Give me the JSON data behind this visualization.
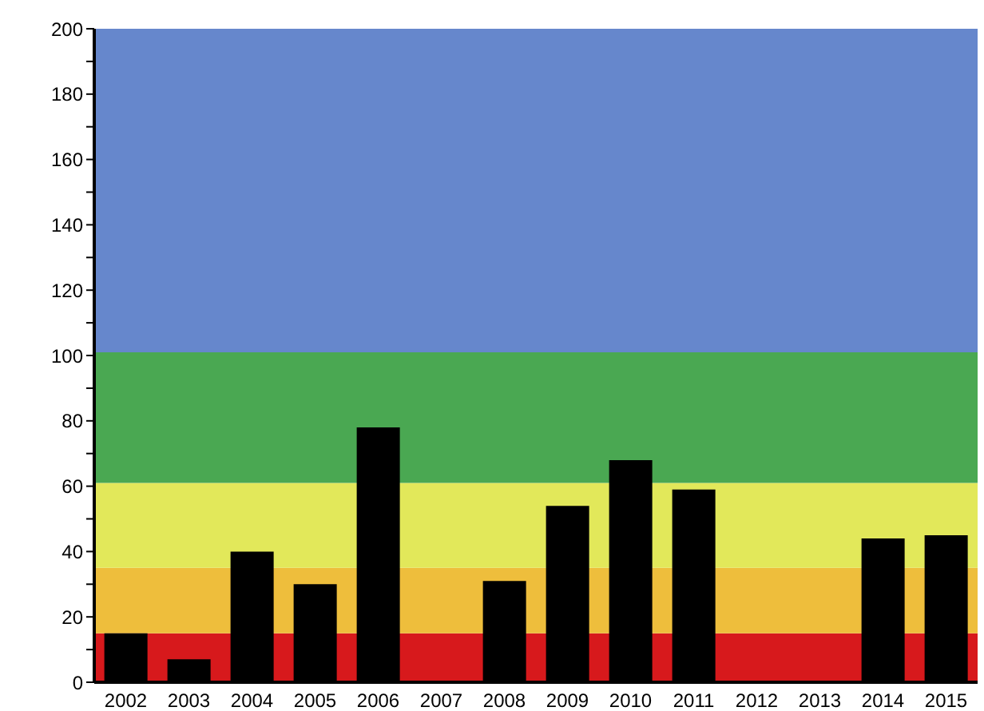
{
  "chart_data": {
    "type": "bar",
    "categories": [
      "2002",
      "2003",
      "2004",
      "2005",
      "2006",
      "2007",
      "2008",
      "2009",
      "2010",
      "2011",
      "2012",
      "2013",
      "2014",
      "2015"
    ],
    "values": [
      15,
      7,
      40,
      30,
      78,
      null,
      31,
      54,
      68,
      59,
      null,
      null,
      44,
      45
    ],
    "color": "#000000",
    "ylim": [
      0,
      200
    ],
    "yticks": [
      0,
      {
        "value": 10,
        "label": null
      },
      20,
      {
        "value": 30,
        "label": null
      },
      40,
      {
        "value": 50,
        "label": null
      },
      60,
      {
        "value": 70,
        "label": null
      },
      80,
      {
        "value": 90,
        "label": null
      },
      100,
      {
        "value": 110,
        "label": null
      },
      120,
      {
        "value": 130,
        "label": null
      },
      140,
      {
        "value": 150,
        "label": null
      },
      160,
      {
        "value": 170,
        "label": null
      },
      180,
      {
        "value": 190,
        "label": null
      },
      200
    ],
    "bands": [
      {
        "axis": "y",
        "from": 0,
        "to": 15,
        "color": "#d7191c"
      },
      {
        "axis": "y",
        "from": 15,
        "to": 35,
        "color": "#eebe3c"
      },
      {
        "axis": "y",
        "from": 35,
        "to": 61,
        "color": "#e2e85a"
      },
      {
        "axis": "y",
        "from": 61,
        "to": 101,
        "color": "#4aa852"
      },
      {
        "axis": "y",
        "from": 101,
        "to": 200,
        "color": "#6687cc"
      }
    ],
    "grid": false,
    "legend": false
  }
}
